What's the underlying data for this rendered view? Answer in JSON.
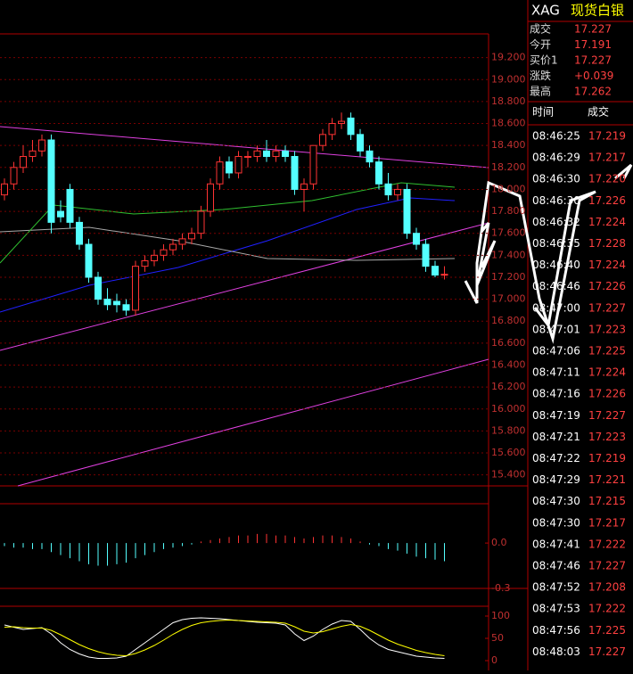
{
  "chart_data": [
    {
      "type": "candlestick",
      "up_color": "#ff3333",
      "down_color": "#54ffff",
      "grid": true,
      "grid_color": "#7a0000",
      "open": [
        17.95,
        18.05,
        18.2,
        18.3,
        18.35,
        18.45,
        17.8,
        18.0,
        17.7,
        17.5,
        17.2,
        17.0,
        16.98,
        16.95,
        16.9,
        17.3,
        17.35,
        17.4,
        17.45,
        17.5,
        17.55,
        17.6,
        17.8,
        18.05,
        18.25,
        18.15,
        18.3,
        18.3,
        18.35,
        18.3,
        18.35,
        18.3,
        18.0,
        18.05,
        18.4,
        18.5,
        18.6,
        18.65,
        18.5,
        18.35,
        18.25,
        18.05,
        17.95,
        18.0,
        17.6,
        17.5,
        17.3,
        17.22
      ],
      "high": [
        18.1,
        18.25,
        18.4,
        18.45,
        18.5,
        18.5,
        17.9,
        18.05,
        17.75,
        17.55,
        17.25,
        17.1,
        17.05,
        17.0,
        17.35,
        17.4,
        17.45,
        17.5,
        17.55,
        17.6,
        17.65,
        17.85,
        18.1,
        18.3,
        18.3,
        18.35,
        18.35,
        18.4,
        18.45,
        18.4,
        18.4,
        18.35,
        18.1,
        18.4,
        18.55,
        18.65,
        18.7,
        18.7,
        18.55,
        18.4,
        18.3,
        18.15,
        18.05,
        18.05,
        17.65,
        17.55,
        17.35,
        17.3
      ],
      "low": [
        17.9,
        18.0,
        18.15,
        18.25,
        18.3,
        17.6,
        17.7,
        17.65,
        17.45,
        17.15,
        16.95,
        16.9,
        16.88,
        16.85,
        16.85,
        17.25,
        17.3,
        17.35,
        17.4,
        17.45,
        17.5,
        17.55,
        17.75,
        18.0,
        18.1,
        18.1,
        18.2,
        18.25,
        18.25,
        18.25,
        18.25,
        17.95,
        17.8,
        18.0,
        18.35,
        18.45,
        18.55,
        18.45,
        18.3,
        18.2,
        18.0,
        17.9,
        17.9,
        17.55,
        17.45,
        17.25,
        17.2,
        17.18
      ],
      "close": [
        18.05,
        18.2,
        18.3,
        18.35,
        18.45,
        17.7,
        17.75,
        17.7,
        17.5,
        17.2,
        17.0,
        16.95,
        16.95,
        16.9,
        17.3,
        17.35,
        17.4,
        17.45,
        17.5,
        17.55,
        17.6,
        17.8,
        18.05,
        18.25,
        18.15,
        18.3,
        18.3,
        18.35,
        18.3,
        18.35,
        18.3,
        18.0,
        18.05,
        18.4,
        18.5,
        18.6,
        18.62,
        18.5,
        18.35,
        18.25,
        18.05,
        17.95,
        18.0,
        17.6,
        17.5,
        17.3,
        17.22,
        17.227
      ],
      "ylim": [
        15.3,
        19.4
      ],
      "yticks": [
        {
          "value": 19.2,
          "label": "19.200"
        },
        {
          "value": 19.0,
          "label": "19.000"
        },
        {
          "value": 18.8,
          "label": "18.800"
        },
        {
          "value": 18.6,
          "label": "18.600"
        },
        {
          "value": 18.4,
          "label": "18.400"
        },
        {
          "value": 18.2,
          "label": "18.200"
        },
        {
          "value": 18.0,
          "label": "18.000"
        },
        {
          "value": 17.8,
          "label": "17.800"
        },
        {
          "value": 17.6,
          "label": "17.600"
        },
        {
          "value": 17.4,
          "label": "17.400"
        },
        {
          "value": 17.2,
          "label": "17.200"
        },
        {
          "value": 17.0,
          "label": "17.000"
        },
        {
          "value": 16.8,
          "label": "16.800"
        },
        {
          "value": 16.6,
          "label": "16.600"
        },
        {
          "value": 16.4,
          "label": "16.400"
        },
        {
          "value": 16.2,
          "label": "16.200"
        },
        {
          "value": 16.0,
          "label": "16.000"
        },
        {
          "value": 15.8,
          "label": "15.800"
        },
        {
          "value": 15.6,
          "label": "15.600"
        },
        {
          "value": 15.4,
          "label": "15.400"
        }
      ]
    },
    {
      "type": "macd",
      "up_color": "#ff3333",
      "down_color": "#54ffff",
      "values": [
        -0.02,
        -0.03,
        -0.03,
        -0.04,
        -0.04,
        -0.06,
        -0.08,
        -0.1,
        -0.12,
        -0.14,
        -0.15,
        -0.15,
        -0.14,
        -0.13,
        -0.1,
        -0.08,
        -0.06,
        -0.04,
        -0.03,
        -0.02,
        -0.01,
        0.01,
        0.02,
        0.03,
        0.04,
        0.05,
        0.05,
        0.06,
        0.06,
        0.05,
        0.05,
        0.04,
        0.03,
        0.04,
        0.05,
        0.05,
        0.04,
        0.03,
        0.01,
        -0.01,
        -0.02,
        -0.04,
        -0.05,
        -0.07,
        -0.09,
        -0.1,
        -0.11,
        -0.12
      ],
      "ylim": [
        -0.3,
        0.26
      ],
      "yticks": [
        {
          "value": 0,
          "label": "0.0"
        },
        -0.3
      ]
    },
    {
      "type": "kdj",
      "ylim": [
        -10,
        110
      ],
      "yticks": [
        100,
        50,
        0
      ],
      "series": [
        {
          "color": "#ffffff",
          "values": [
            80,
            75,
            70,
            72,
            74,
            60,
            40,
            25,
            15,
            8,
            5,
            5,
            6,
            10,
            25,
            40,
            55,
            70,
            85,
            92,
            95,
            96,
            95,
            94,
            92,
            90,
            88,
            86,
            85,
            84,
            80,
            60,
            45,
            55,
            70,
            82,
            90,
            88,
            70,
            50,
            35,
            25,
            20,
            15,
            10,
            8,
            6,
            5
          ]
        },
        {
          "color": "#ffff00",
          "values": [
            75,
            76,
            74,
            73,
            73,
            68,
            58,
            47,
            36,
            27,
            20,
            15,
            12,
            11,
            16,
            24,
            34,
            46,
            59,
            70,
            79,
            85,
            88,
            90,
            91,
            90,
            89,
            88,
            87,
            86,
            84,
            76,
            66,
            62,
            65,
            71,
            77,
            81,
            77,
            68,
            57,
            46,
            37,
            30,
            23,
            18,
            14,
            11
          ]
        }
      ]
    }
  ],
  "quote": {
    "symbol": "XAG",
    "name": "现货白银",
    "rows": [
      [
        "成交",
        "17.227"
      ],
      [
        "今开",
        "17.191"
      ],
      [
        "买价1",
        "17.227"
      ],
      [
        "涨跌",
        "+0.039"
      ],
      [
        "最高",
        "17.262"
      ]
    ]
  },
  "trades": {
    "header": [
      "时间",
      "成交"
    ],
    "rows": [
      [
        "08:46:25",
        "17.219"
      ],
      [
        "08:46:29",
        "17.217"
      ],
      [
        "08:46:30",
        "17.220"
      ],
      [
        "08:46:30",
        "17.226"
      ],
      [
        "08:46:32",
        "17.224"
      ],
      [
        "08:46:35",
        "17.228"
      ],
      [
        "08:46:40",
        "17.224"
      ],
      [
        "08:46:46",
        "17.226"
      ],
      [
        "08:47:00",
        "17.227"
      ],
      [
        "08:47:01",
        "17.223"
      ],
      [
        "08:47:06",
        "17.225"
      ],
      [
        "08:47:11",
        "17.224"
      ],
      [
        "08:47:16",
        "17.226"
      ],
      [
        "08:47:19",
        "17.227"
      ],
      [
        "08:47:21",
        "17.223"
      ],
      [
        "08:47:22",
        "17.219"
      ],
      [
        "08:47:29",
        "17.221"
      ],
      [
        "08:47:30",
        "17.215"
      ],
      [
        "08:47:30",
        "17.217"
      ],
      [
        "08:47:41",
        "17.222"
      ],
      [
        "08:47:46",
        "17.227"
      ],
      [
        "08:47:52",
        "17.208"
      ],
      [
        "08:47:53",
        "17.222"
      ],
      [
        "08:47:56",
        "17.225"
      ],
      [
        "08:48:03",
        "17.227"
      ]
    ]
  }
}
